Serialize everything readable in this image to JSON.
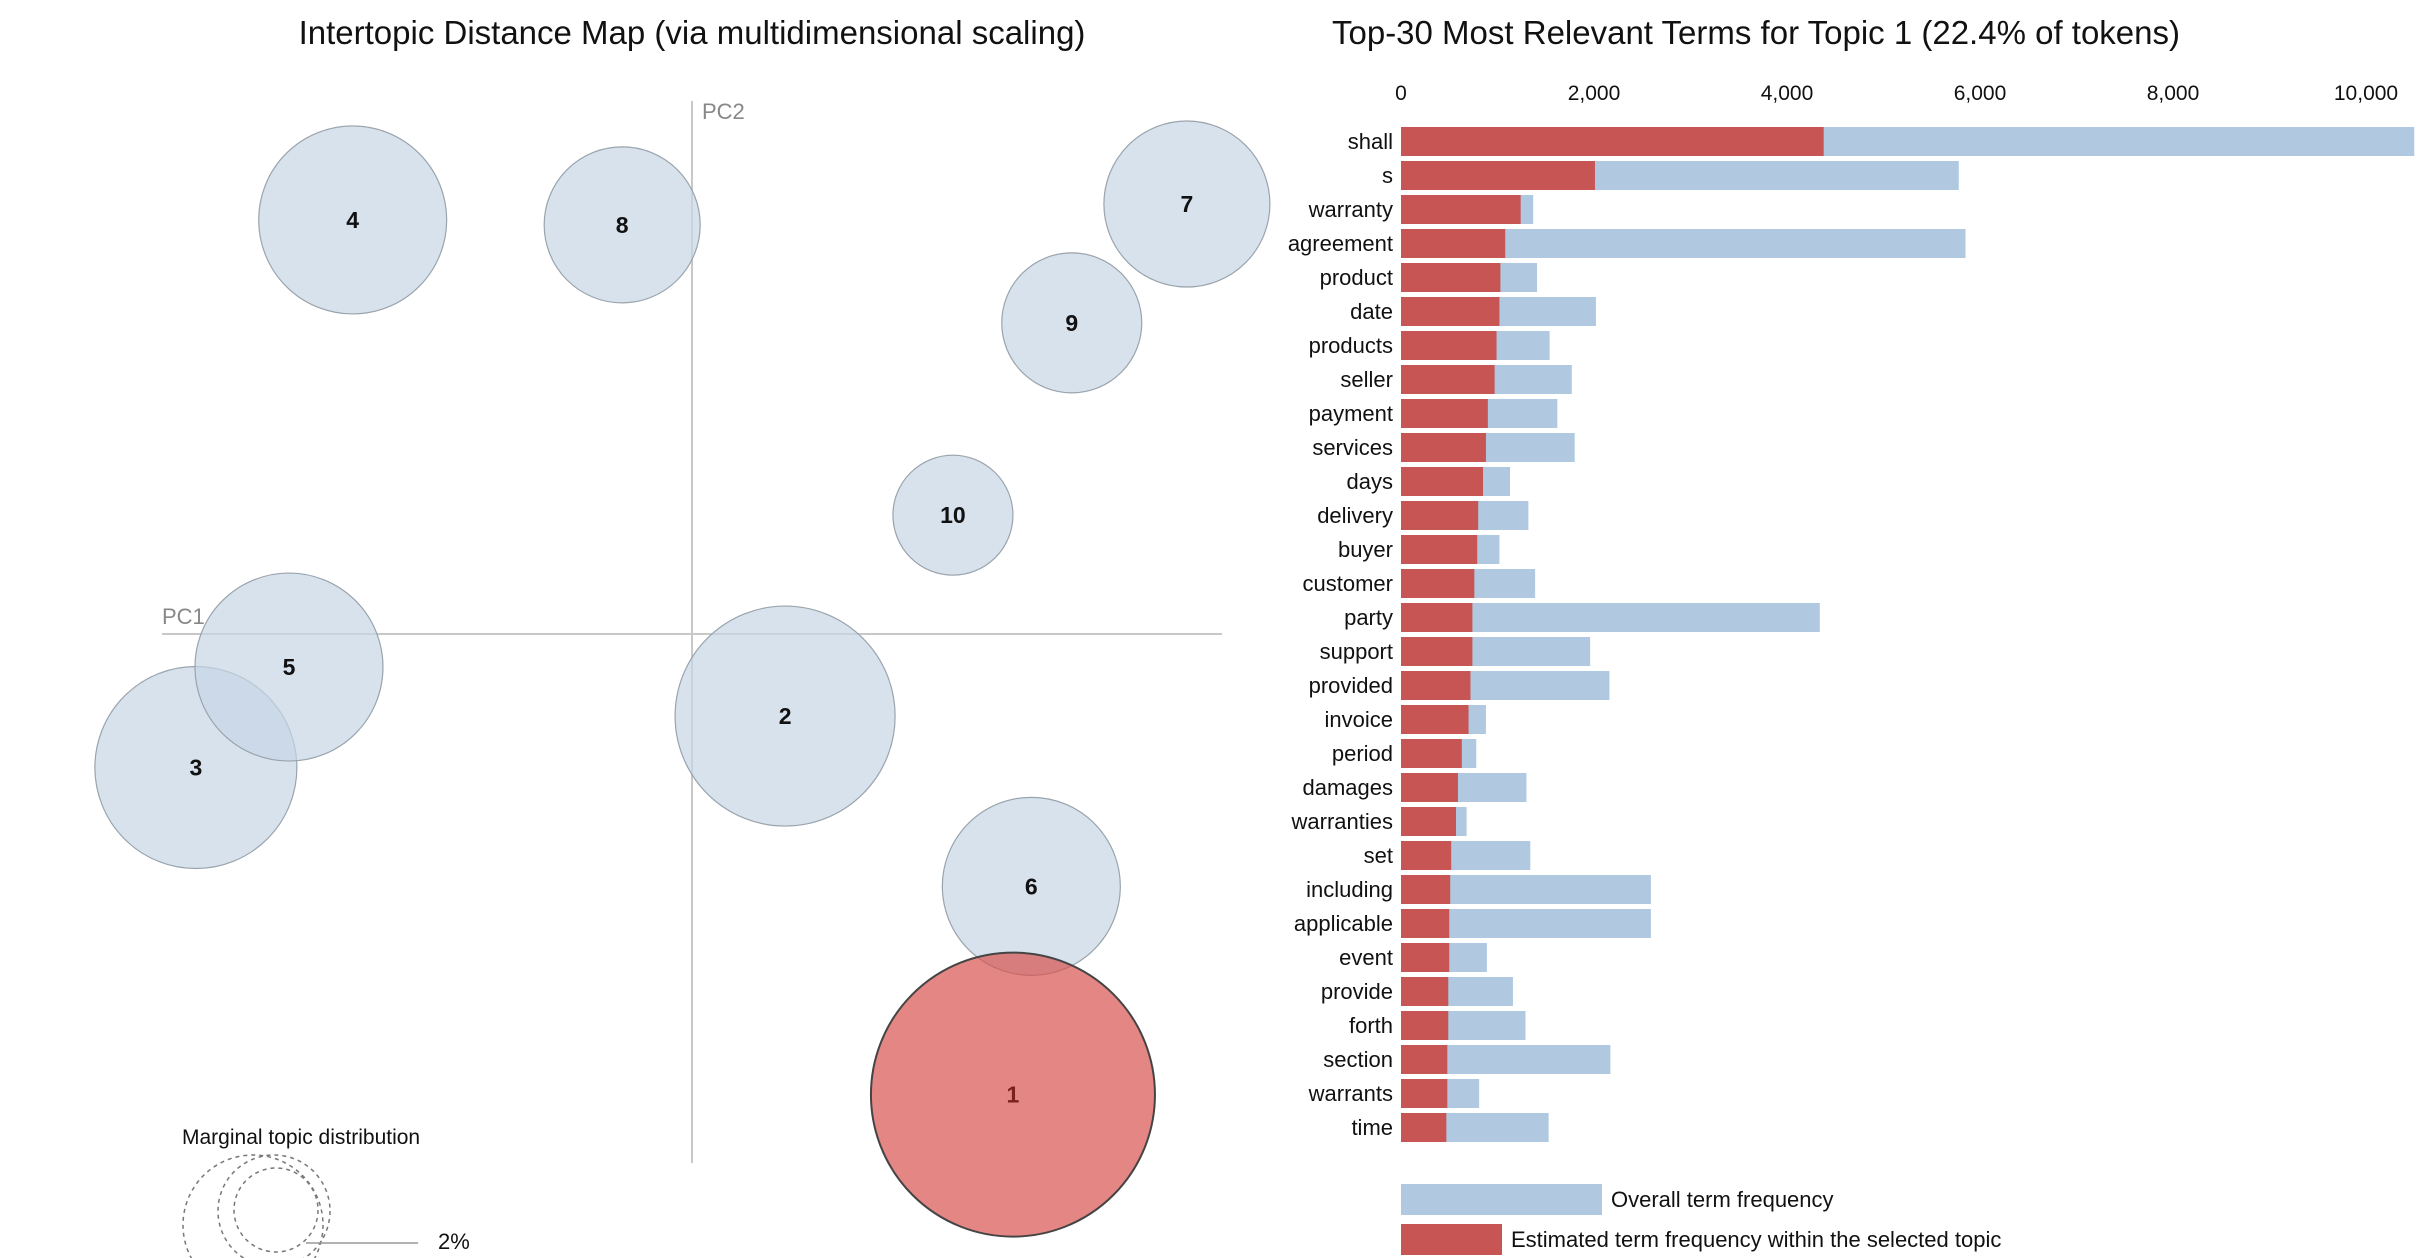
{
  "left_panel": {
    "title": "Intertopic Distance Map (via multidimensional scaling)",
    "pc1_label": "PC1",
    "pc2_label": "PC2",
    "marginal_title": "Marginal topic distribution",
    "marginal_value": "2%"
  },
  "right_panel": {
    "title": "Top-30 Most Relevant Terms for Topic 1 (22.4% of tokens)",
    "legend_overall": "Overall term frequency",
    "legend_topic": "Estimated term frequency within the selected topic"
  },
  "colors": {
    "topic_bubble": "#c6d5e6",
    "selected_bubble": "#d9534f",
    "overall_bar": "#b0c9e0",
    "topic_bar": "#c65553",
    "axis_line": "#c8c8c8"
  },
  "chart_data": [
    {
      "type": "scatter",
      "title": "Intertopic Distance Map (via multidimensional scaling)",
      "xlabel": "PC1",
      "ylabel": "PC2",
      "selected_topic": "1",
      "topics": [
        {
          "id": "1",
          "pc1": 0.262,
          "pc2": -0.376,
          "selected": true
        },
        {
          "id": "2",
          "pc1": 0.076,
          "pc2": -0.067
        },
        {
          "id": "3",
          "pc1": -0.405,
          "pc2": -0.109
        },
        {
          "id": "4",
          "pc1": -0.277,
          "pc2": 0.338
        },
        {
          "id": "5",
          "pc1": -0.329,
          "pc2": -0.027
        },
        {
          "id": "6",
          "pc1": 0.277,
          "pc2": -0.206
        },
        {
          "id": "7",
          "pc1": 0.404,
          "pc2": 0.351
        },
        {
          "id": "8",
          "pc1": -0.057,
          "pc2": 0.334
        },
        {
          "id": "9",
          "pc1": 0.31,
          "pc2": 0.254
        },
        {
          "id": "10",
          "pc1": 0.213,
          "pc2": 0.097
        }
      ]
    },
    {
      "type": "bar",
      "orientation": "horizontal",
      "title": "Top-30 Most Relevant Terms for Topic 1 (22.4% of tokens)",
      "xlim": [
        0,
        10500
      ],
      "xticks": [
        0,
        2000,
        4000,
        6000,
        8000,
        10000
      ],
      "xtick_labels": [
        "0",
        "2,000",
        "4,000",
        "6,000",
        "8,000",
        "10,000"
      ],
      "categories": [
        "shall",
        "s",
        "warranty",
        "agreement",
        "product",
        "date",
        "products",
        "seller",
        "payment",
        "services",
        "days",
        "delivery",
        "buyer",
        "customer",
        "party",
        "support",
        "provided",
        "invoice",
        "period",
        "damages",
        "warranties",
        "set",
        "including",
        "applicable",
        "event",
        "provide",
        "forth",
        "section",
        "warrants",
        "time"
      ],
      "series": [
        {
          "name": "Overall term frequency",
          "values": [
            10500,
            5780,
            1370,
            5850,
            1410,
            2020,
            1540,
            1770,
            1620,
            1800,
            1130,
            1320,
            1020,
            1390,
            4340,
            1960,
            2160,
            880,
            780,
            1300,
            680,
            1340,
            2590,
            2590,
            890,
            1160,
            1290,
            2170,
            810,
            1530
          ]
        },
        {
          "name": "Estimated term frequency within the selected topic",
          "values": [
            4380,
            2010,
            1240,
            1080,
            1030,
            1020,
            990,
            970,
            900,
            880,
            850,
            800,
            790,
            760,
            740,
            740,
            720,
            700,
            630,
            590,
            570,
            520,
            510,
            500,
            500,
            490,
            490,
            480,
            480,
            470
          ]
        }
      ]
    }
  ]
}
